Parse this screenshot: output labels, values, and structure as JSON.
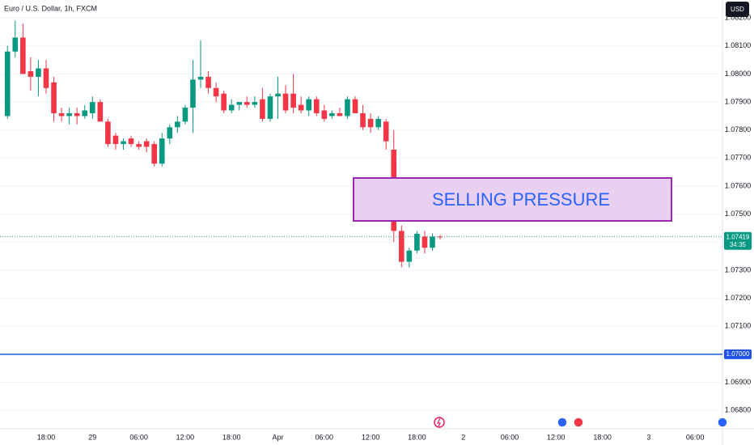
{
  "chart_data": {
    "type": "candlestick",
    "title": "Euro / U.S. Dollar, 1h, FXCM",
    "currency": "USD",
    "categories": [
      null,
      null,
      null,
      null,
      null,
      "18:00",
      null,
      null,
      null,
      null,
      null,
      "29",
      null,
      null,
      null,
      null,
      null,
      "06:00",
      null,
      null,
      null,
      null,
      null,
      "12:00",
      null,
      null,
      null,
      null,
      null,
      "18:00",
      null,
      null,
      null,
      null,
      null,
      "Apr",
      null,
      null,
      null,
      null,
      null,
      "06:00",
      null,
      null,
      null,
      null,
      null,
      "12:00",
      null,
      null,
      null,
      null,
      null,
      "18:00",
      null,
      null,
      null,
      null,
      null,
      "2",
      null,
      null,
      null,
      null,
      null,
      "06:00",
      null,
      null,
      null,
      null,
      null,
      "12:00",
      null,
      null,
      null,
      null,
      null,
      "18:00",
      null,
      null,
      null,
      null,
      null,
      "3",
      null,
      null,
      null,
      null,
      null,
      "06:00",
      null,
      null
    ],
    "open": [
      1.0785,
      1.0808,
      1.0813,
      1.0801,
      1.0799,
      1.0802,
      1.0797,
      1.0786,
      1.0785,
      1.0786,
      1.0785,
      1.0786,
      1.079,
      1.0783,
      1.0778,
      1.0775,
      1.0777,
      1.0775,
      1.0776,
      1.0775,
      1.0768,
      1.0777,
      1.0781,
      1.0783,
      1.0788,
      1.0798,
      1.0799,
      1.0795,
      1.0793,
      1.0787,
      1.0789,
      1.079,
      1.0789,
      1.0791,
      1.0784,
      1.0792,
      1.0793,
      1.0793,
      1.0789,
      1.0787,
      1.0791,
      1.0787,
      1.0785,
      1.0786,
      1.0785,
      1.0791,
      1.0786,
      1.0784,
      1.0781,
      1.0783,
      1.0773,
      1.0744,
      1.0733,
      1.0737,
      1.0742,
      1.0738,
      1.0742,
      null,
      null,
      null,
      null,
      null,
      null,
      null,
      null,
      null,
      null,
      null,
      null,
      null,
      null,
      null,
      null,
      null,
      null,
      null,
      null,
      null,
      null,
      null,
      null,
      null,
      null,
      null,
      null,
      null,
      null,
      null,
      null,
      null,
      null,
      null
    ],
    "high": [
      1.081,
      1.0819,
      1.0818,
      1.0806,
      1.0805,
      1.0805,
      1.0799,
      1.0788,
      1.0788,
      1.0788,
      1.0789,
      1.0792,
      1.0791,
      1.0784,
      1.0779,
      1.0777,
      1.0778,
      1.0776,
      1.0777,
      1.0776,
      1.0779,
      1.0782,
      1.0785,
      1.0789,
      1.0805,
      1.0812,
      1.0801,
      1.0797,
      1.0794,
      1.0791,
      1.079,
      1.0792,
      1.0792,
      1.0795,
      1.0793,
      1.0799,
      1.0796,
      1.08,
      1.0792,
      1.0792,
      1.0792,
      1.0789,
      1.0787,
      1.0788,
      1.0792,
      1.0792,
      1.0789,
      1.0786,
      1.0785,
      1.0784,
      1.078,
      1.0746,
      1.0738,
      1.0744,
      1.0744,
      1.0743,
      1.07425,
      null,
      null,
      null,
      null,
      null,
      null,
      null,
      null,
      null,
      null,
      null,
      null,
      null,
      null,
      null,
      null,
      null,
      null,
      null,
      null,
      null,
      null,
      null,
      null,
      null,
      null,
      null,
      null,
      null,
      null,
      null,
      null,
      null,
      null,
      null
    ],
    "low": [
      1.0784,
      1.0806,
      1.08,
      1.0794,
      1.0792,
      1.0793,
      1.0783,
      1.0783,
      1.0782,
      1.0782,
      1.0784,
      1.0784,
      1.0783,
      1.0774,
      1.0773,
      1.0773,
      1.0774,
      1.0773,
      1.0772,
      1.0767,
      1.0767,
      1.0775,
      1.0779,
      1.0782,
      1.0779,
      1.0795,
      1.0793,
      1.079,
      1.0786,
      1.0786,
      1.0787,
      1.0788,
      1.0788,
      1.0783,
      1.0783,
      1.0784,
      1.0786,
      1.0786,
      1.0786,
      1.0785,
      1.0785,
      1.0783,
      1.0784,
      1.0785,
      1.0784,
      1.0786,
      1.078,
      1.0779,
      1.078,
      1.0773,
      1.074,
      1.0731,
      1.0731,
      1.0736,
      1.0736,
      1.0737,
      1.0741,
      null,
      null,
      null,
      null,
      null,
      null,
      null,
      null,
      null,
      null,
      null,
      null,
      null,
      null,
      null,
      null,
      null,
      null,
      null,
      null,
      null,
      null,
      null,
      null,
      null,
      null,
      null,
      null,
      null,
      null,
      null,
      null,
      null,
      null,
      null
    ],
    "close": [
      1.0808,
      1.0813,
      1.08,
      1.0799,
      1.0802,
      1.0795,
      1.0786,
      1.0785,
      1.0786,
      1.0785,
      1.0787,
      1.079,
      1.0783,
      1.0775,
      1.0775,
      1.0776,
      1.0775,
      1.0774,
      1.0774,
      1.0768,
      1.0777,
      1.0781,
      1.0783,
      1.0788,
      1.0798,
      1.0799,
      1.0795,
      1.0792,
      1.0787,
      1.0789,
      1.079,
      1.0789,
      1.079,
      1.0784,
      1.0792,
      1.0793,
      1.0787,
      1.0788,
      1.0787,
      1.0791,
      1.0786,
      1.0784,
      1.0786,
      1.0785,
      1.0791,
      1.0786,
      1.0781,
      1.0781,
      1.0784,
      1.0776,
      1.0744,
      1.0733,
      1.0737,
      1.0743,
      1.0738,
      1.0742,
      1.07419,
      null,
      null,
      null,
      null,
      null,
      null,
      null,
      null,
      null,
      null,
      null,
      null,
      null,
      null,
      null,
      null,
      null,
      null,
      null,
      null,
      null,
      null,
      null,
      null,
      null,
      null,
      null,
      null,
      null,
      null,
      null,
      null,
      null,
      null,
      null
    ],
    "up_color": "#089981",
    "down_color": "#f23645",
    "ylim": [
      1.06734,
      1.08264
    ],
    "yticks": [
      {
        "value": 1.082,
        "label": "1.08200"
      },
      {
        "value": 1.081,
        "label": "1.08100"
      },
      {
        "value": 1.08,
        "label": "1.08000"
      },
      {
        "value": 1.079,
        "label": "1.07900"
      },
      {
        "value": 1.078,
        "label": "1.07800"
      },
      {
        "value": 1.077,
        "label": "1.07700"
      },
      {
        "value": 1.076,
        "label": "1.07600"
      },
      {
        "value": 1.075,
        "label": "1.07500"
      },
      {
        "value": 1.074,
        "label": "1.07400"
      },
      {
        "value": 1.073,
        "label": "1.07300"
      },
      {
        "value": 1.072,
        "label": "1.07200"
      },
      {
        "value": 1.071,
        "label": "1.07100"
      },
      {
        "value": 1.07,
        "label": "1.07000"
      },
      {
        "value": 1.069,
        "label": "1.06900"
      },
      {
        "value": 1.068,
        "label": "1.06800"
      }
    ],
    "grid": true,
    "current_price": 1.07419,
    "countdown": "34:35",
    "level_line": {
      "value": 1.07,
      "label": "1.07000",
      "color": "#1e53e5"
    },
    "annotation": "SELLING PRESSURE"
  }
}
